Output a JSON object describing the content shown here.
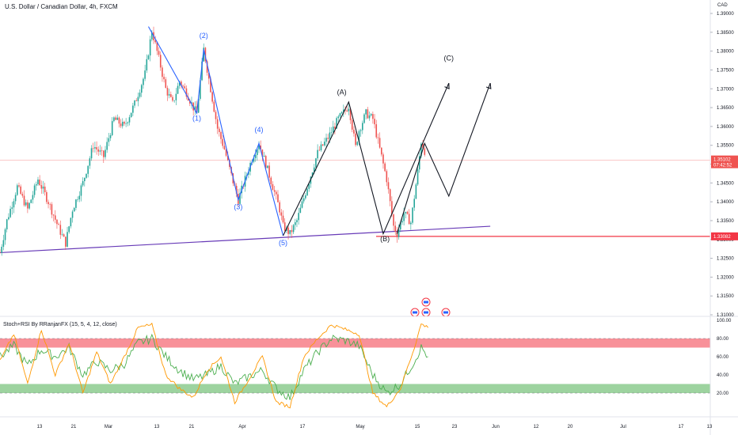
{
  "header": {
    "symbol": "U.S. Dollar / Canadian Dollar, 4h, FXCM",
    "currency": "CAD"
  },
  "indicator": {
    "label": "Stoch+RSI By RRanjanFX (15, 5, 4, 12, close)"
  },
  "colors": {
    "up_candle": "#26a69a",
    "down_candle": "#ef5350",
    "trendline": "#673ab7",
    "wave_label": "#2962ff",
    "support": "#f23645",
    "stoch_k": "#4caf50",
    "stoch_d": "#ff9800",
    "overbought_band": "#f23645",
    "oversold_band": "#4caf50"
  },
  "chart_data": [
    {
      "type": "candlestick",
      "title": "U.S. Dollar / Canadian Dollar, 4h, FXCM",
      "ylabel": "CAD",
      "ylim": [
        1.31,
        1.39
      ],
      "y_ticks": [
        "1.39000",
        "1.38500",
        "1.38000",
        "1.37500",
        "1.37000",
        "1.36500",
        "1.36000",
        "1.35500",
        "1.35000",
        "1.34500",
        "1.34000",
        "1.33500",
        "1.33000",
        "1.32500",
        "1.32000",
        "1.31500",
        "1.31000"
      ],
      "x_ticks": [
        "13",
        "21",
        "Mar",
        "13",
        "21",
        "Apr",
        "17",
        "May",
        "15",
        "23",
        "Jun",
        "12",
        "20",
        "Jul",
        "17",
        "13"
      ],
      "current_price": {
        "value": "1.35102",
        "countdown": "07:42:52"
      },
      "support_level": {
        "value": "1.33082"
      },
      "price_path": [
        [
          0,
          1.3265
        ],
        [
          2,
          1.335
        ],
        [
          5,
          1.344
        ],
        [
          8,
          1.338
        ],
        [
          11,
          1.346
        ],
        [
          14,
          1.34
        ],
        [
          17,
          1.333
        ],
        [
          19,
          1.329
        ],
        [
          21,
          1.338
        ],
        [
          24,
          1.345
        ],
        [
          27,
          1.355
        ],
        [
          30,
          1.352
        ],
        [
          33,
          1.362
        ],
        [
          36,
          1.36
        ],
        [
          39,
          1.366
        ],
        [
          42,
          1.374
        ],
        [
          44,
          1.3855
        ],
        [
          46,
          1.378
        ],
        [
          48,
          1.37
        ],
        [
          50,
          1.366
        ],
        [
          52,
          1.372
        ],
        [
          54,
          1.369
        ],
        [
          56,
          1.365
        ],
        [
          57,
          1.3635
        ],
        [
          58,
          1.372
        ],
        [
          59,
          1.3805
        ],
        [
          61,
          1.37
        ],
        [
          63,
          1.3595
        ],
        [
          65,
          1.354
        ],
        [
          67,
          1.347
        ],
        [
          69,
          1.3405
        ],
        [
          71,
          1.346
        ],
        [
          73,
          1.3515
        ],
        [
          75,
          1.3555
        ],
        [
          77,
          1.35
        ],
        [
          79,
          1.344
        ],
        [
          81,
          1.338
        ],
        [
          82,
          1.3335
        ],
        [
          84,
          1.3315
        ],
        [
          86,
          1.335
        ],
        [
          88,
          1.341
        ],
        [
          90,
          1.347
        ],
        [
          92,
          1.353
        ],
        [
          95,
          1.357
        ],
        [
          98,
          1.362
        ],
        [
          101,
          1.3655
        ],
        [
          103,
          1.3545
        ],
        [
          104,
          1.359
        ],
        [
          106,
          1.3635
        ],
        [
          108,
          1.362
        ],
        [
          110,
          1.354
        ],
        [
          112,
          1.346
        ],
        [
          114,
          1.3335
        ],
        [
          115,
          1.3315
        ],
        [
          117,
          1.337
        ],
        [
          119,
          1.3345
        ],
        [
          121,
          1.348
        ],
        [
          122,
          1.356
        ],
        [
          123,
          1.3535
        ]
      ],
      "elliott_wave": {
        "labels": [
          {
            "text": "(1)",
            "x": 57,
            "y": 1.3615
          },
          {
            "text": "(2)",
            "x": 59,
            "y": 1.3835
          },
          {
            "text": "(3)",
            "x": 69,
            "y": 1.338
          },
          {
            "text": "(4)",
            "x": 75,
            "y": 1.3585
          },
          {
            "text": "(5)",
            "x": 82,
            "y": 1.3285
          },
          {
            "text": "(A)",
            "x": 99,
            "y": 1.3685
          },
          {
            "text": "(B)",
            "x": 111.5,
            "y": 1.3295
          },
          {
            "text": "(C)",
            "x": 130,
            "y": 1.3775
          }
        ],
        "impulse": [
          [
            43,
            1.3865
          ],
          [
            57,
            1.3635
          ],
          [
            59,
            1.3805
          ],
          [
            69,
            1.3405
          ],
          [
            75,
            1.3555
          ],
          [
            82,
            1.331
          ]
        ],
        "correction": [
          [
            82,
            1.331
          ],
          [
            101,
            1.3665
          ],
          [
            111,
            1.3315
          ],
          [
            130,
            1.3715
          ]
        ],
        "alt_projection": [
          [
            115,
            1.3315
          ],
          [
            123,
            1.3555
          ],
          [
            130,
            1.3415
          ],
          [
            142,
            1.3715
          ]
        ]
      },
      "trendline": [
        [
          0,
          1.3265
        ],
        [
          142,
          1.3335
        ]
      ]
    },
    {
      "type": "line",
      "title": "Stoch+RSI By RRanjanFX (15, 5, 4, 12, close)",
      "ylim": [
        0,
        100
      ],
      "y_ticks": [
        "100.00",
        "80.00",
        "60.00",
        "40.00",
        "20.00"
      ],
      "bands": {
        "overbought": [
          70,
          80
        ],
        "oversold": [
          20,
          30
        ]
      },
      "series": [
        {
          "values": [
            [
              0,
              60
            ],
            [
              4,
              72
            ],
            [
              8,
              50
            ],
            [
              12,
              68
            ],
            [
              16,
              60
            ],
            [
              20,
              70
            ],
            [
              24,
              40
            ],
            [
              28,
              55
            ],
            [
              32,
              45
            ],
            [
              36,
              52
            ],
            [
              40,
              75
            ],
            [
              44,
              80
            ],
            [
              48,
              60
            ],
            [
              52,
              45
            ],
            [
              56,
              35
            ],
            [
              60,
              40
            ],
            [
              64,
              50
            ],
            [
              68,
              30
            ],
            [
              72,
              38
            ],
            [
              76,
              45
            ],
            [
              80,
              25
            ],
            [
              84,
              15
            ],
            [
              88,
              45
            ],
            [
              92,
              65
            ],
            [
              96,
              80
            ],
            [
              100,
              78
            ],
            [
              104,
              72
            ],
            [
              108,
              40
            ],
            [
              112,
              20
            ],
            [
              116,
              30
            ],
            [
              120,
              55
            ],
            [
              122,
              70
            ],
            [
              124,
              60
            ]
          ]
        },
        {
          "values": [
            [
              0,
              55
            ],
            [
              4,
              85
            ],
            [
              8,
              30
            ],
            [
              12,
              90
            ],
            [
              16,
              40
            ],
            [
              20,
              75
            ],
            [
              24,
              20
            ],
            [
              28,
              65
            ],
            [
              32,
              30
            ],
            [
              36,
              60
            ],
            [
              40,
              92
            ],
            [
              44,
              95
            ],
            [
              48,
              40
            ],
            [
              52,
              25
            ],
            [
              56,
              15
            ],
            [
              60,
              45
            ],
            [
              64,
              60
            ],
            [
              68,
              10
            ],
            [
              72,
              35
            ],
            [
              76,
              60
            ],
            [
              80,
              10
            ],
            [
              84,
              5
            ],
            [
              88,
              60
            ],
            [
              92,
              80
            ],
            [
              96,
              95
            ],
            [
              100,
              90
            ],
            [
              104,
              85
            ],
            [
              108,
              20
            ],
            [
              112,
              5
            ],
            [
              116,
              25
            ],
            [
              120,
              70
            ],
            [
              122,
              96
            ],
            [
              124,
              92
            ]
          ]
        }
      ]
    }
  ]
}
